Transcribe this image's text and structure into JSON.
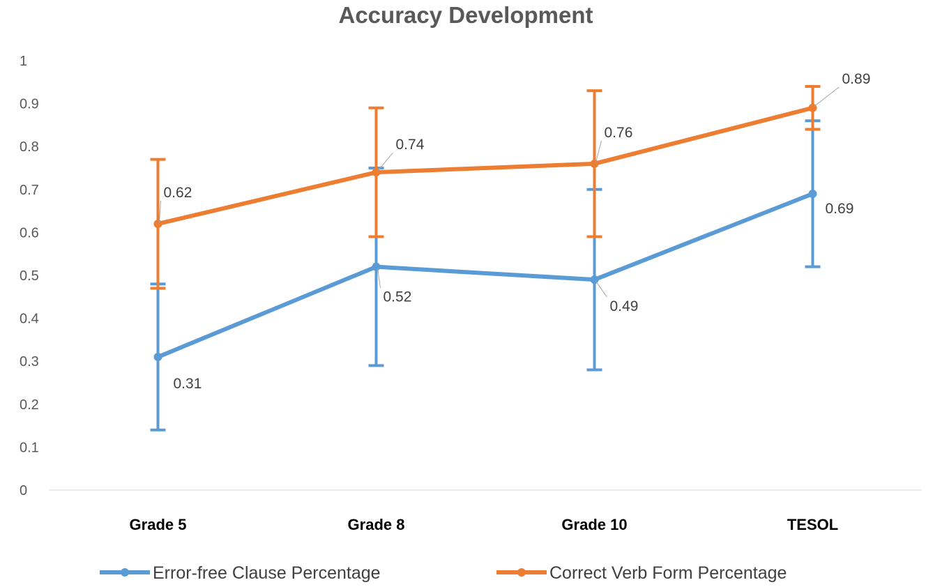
{
  "chart_data": {
    "type": "line",
    "title": "Accuracy Development",
    "xlabel": "",
    "ylabel": "",
    "categories": [
      "Grade 5",
      "Grade 8",
      "Grade 10",
      "TESOL"
    ],
    "ylim": [
      0,
      1
    ],
    "yticks": [
      "0",
      "0.1",
      "0.2",
      "0.3",
      "0.4",
      "0.5",
      "0.6",
      "0.7",
      "0.8",
      "0.9",
      "1"
    ],
    "grid": false,
    "legend_position": "bottom",
    "series": [
      {
        "name": "Error-free Clause Percentage",
        "color": "#5B9BD5",
        "values": [
          0.31,
          0.52,
          0.49,
          0.69
        ],
        "labels": [
          "0.31",
          "0.52",
          "0.49",
          "0.69"
        ],
        "error_low": [
          0.14,
          0.29,
          0.28,
          0.52
        ],
        "error_high": [
          0.48,
          0.75,
          0.7,
          0.86
        ]
      },
      {
        "name": "Correct Verb Form Percentage",
        "color": "#ED7D31",
        "values": [
          0.62,
          0.74,
          0.76,
          0.89
        ],
        "labels": [
          "0.62",
          "0.74",
          "0.76",
          "0.89"
        ],
        "error_low": [
          0.47,
          0.59,
          0.59,
          0.84
        ],
        "error_high": [
          0.77,
          0.89,
          0.93,
          0.94
        ]
      }
    ]
  }
}
